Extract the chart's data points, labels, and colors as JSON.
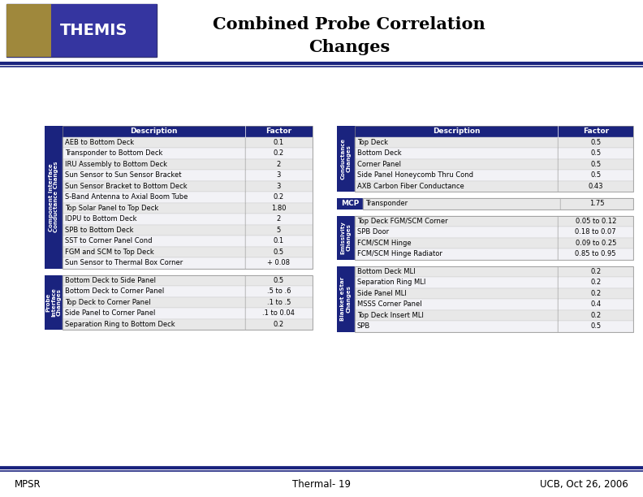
{
  "title_line1": "Combined Probe Correlation",
  "title_line2": "Changes",
  "footer_left": "MPSR",
  "footer_center": "Thermal- 19",
  "footer_right": "UCB, Oct 26, 2006",
  "dark_blue": "#1a237e",
  "light_gray": "#e8e8e8",
  "alt_gray": "#f2f2f6",
  "dark_gray": "#aaaaaa",
  "table1_header": [
    "Description",
    "Factor"
  ],
  "table1_label": "Component Interface\nConductance Changes",
  "table1_rows": [
    [
      "AEB to Bottom Deck",
      "0.1"
    ],
    [
      "Transponder to Bottom Deck",
      "0.2"
    ],
    [
      "IRU Assembly to Bottom Deck",
      "2"
    ],
    [
      "Sun Sensor to Sun Sensor Bracket",
      "3"
    ],
    [
      "Sun Sensor Bracket to Bottom Deck",
      "3"
    ],
    [
      "S-Band Antenna to Axial Boom Tube",
      "0.2"
    ],
    [
      "Top Solar Panel to Top Deck",
      "1.80"
    ],
    [
      "IDPU to Bottom Deck",
      "2"
    ],
    [
      "SPB to Bottom Deck",
      "5"
    ],
    [
      "SST to Corner Panel Cond",
      "0.1"
    ],
    [
      "FGM and SCM to Top Deck",
      "0.5"
    ],
    [
      "Sun Sensor to Thermal Box Corner",
      "+ 0.08"
    ]
  ],
  "table2_header": [
    "Description",
    "Factor"
  ],
  "table2_label": "Conductance\nChanges",
  "table2_rows": [
    [
      "Top Deck",
      "0.5"
    ],
    [
      "Bottom Deck",
      "0.5"
    ],
    [
      "Corner Panel",
      "0.5"
    ],
    [
      "Side Panel Honeycomb Thru Cond",
      "0.5"
    ],
    [
      "AXB Carbon Fiber Conductance",
      "0.43"
    ]
  ],
  "table3_label": "MCP",
  "table3_rows": [
    [
      "Transponder",
      "1.75"
    ]
  ],
  "table4_label": "Emissivity\nChanges",
  "table4_rows": [
    [
      "Top Deck FGM/SCM Corner",
      "0.05 to 0.12"
    ],
    [
      "SPB Door",
      "0.18 to 0.07"
    ],
    [
      "FCM/SCM Hinge",
      "0.09 to 0.25"
    ],
    [
      "FCM/SCM Hinge Radiator",
      "0.85 to 0.95"
    ]
  ],
  "table5_label": "Probe\nInterface\nChanges",
  "table5_rows": [
    [
      "Bottom Deck to Side Panel",
      "0.5"
    ],
    [
      "Bottom Deck to Corner Panel",
      ".5 to .6"
    ],
    [
      "Top Deck to Corner Panel",
      ".1 to .5"
    ],
    [
      "Side Panel to Corner Panel",
      ".1 to 0.04"
    ],
    [
      "Separation Ring to Bottom Deck",
      "0.2"
    ]
  ],
  "table6_label": "Blanket eStar\nChanges",
  "table6_rows": [
    [
      "Bottom Deck MLI",
      "0.2"
    ],
    [
      "Separation Ring MLI",
      "0.2"
    ],
    [
      "Side Panel MLI",
      "0.2"
    ],
    [
      "MSSS Corner Panel",
      "0.4"
    ],
    [
      "Top Deck Insert MLI",
      "0.2"
    ],
    [
      "SPB",
      "0.5"
    ]
  ]
}
